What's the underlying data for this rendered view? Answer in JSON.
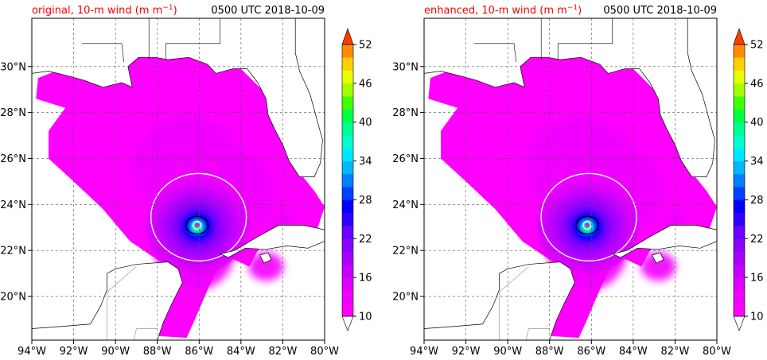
{
  "panels": [
    {
      "id": "original",
      "title_left_prefix": "original, 10-m wind (m m",
      "title_left_sup": "−1",
      "title_left_suffix": ")",
      "title_right": "0500 UTC 2018-10-09",
      "core": {
        "lon": -86.1,
        "lat": 23.1
      }
    },
    {
      "id": "enhanced",
      "title_left_prefix": "enhanced, 10-m wind (m m",
      "title_left_sup": "−1",
      "title_left_suffix": ")",
      "title_right": "0500 UTC 2018-10-09",
      "core": {
        "lon": -86.2,
        "lat": 23.1
      }
    }
  ],
  "lon_ticks": [
    "94°W",
    "92°W",
    "90°W",
    "88°W",
    "86°W",
    "84°W",
    "82°W",
    "80°W"
  ],
  "lat_ticks": [
    "20°N",
    "22°N",
    "24°N",
    "26°N",
    "28°N",
    "30°N"
  ],
  "colorbar": {
    "min": 10,
    "max": 52,
    "step": 2,
    "tick_labels": [
      "10",
      "16",
      "22",
      "28",
      "34",
      "40",
      "46",
      "52"
    ],
    "extend": "both"
  },
  "title_color": "#ff0000"
}
